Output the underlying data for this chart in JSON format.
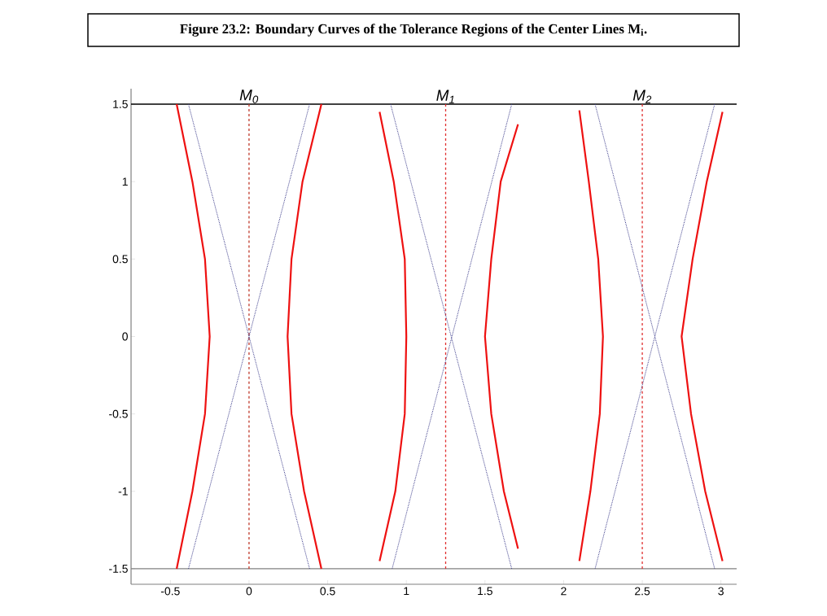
{
  "chart_data": {
    "type": "line",
    "title": "Figure 23.2: Boundary Curves of the Tolerance Regions of the Center Lines M$_{i}$.",
    "xlim": [
      -0.75,
      3.1
    ],
    "ylim": [
      -1.6,
      1.6
    ],
    "xticks": [
      -0.5,
      0,
      0.5,
      1,
      1.5,
      2,
      2.5,
      3
    ],
    "yticks": [
      -1.5,
      -1,
      -0.5,
      0,
      0.5,
      1,
      1.5
    ],
    "grid": false,
    "marker": "none",
    "series": [
      {
        "color": "#ee1111",
        "line_style": "solid",
        "x": [
          -0.46,
          -0.36,
          -0.28,
          -0.25,
          -0.28,
          -0.36,
          -0.46
        ],
        "values": [
          1.5,
          1,
          0.5,
          0,
          -0.5,
          -1,
          -1.5
        ]
      },
      {
        "color": "#ee1111",
        "line_style": "solid",
        "x": [
          0.46,
          0.34,
          0.27,
          0.245,
          0.27,
          0.35,
          0.46
        ],
        "values": [
          1.5,
          1,
          0.5,
          0,
          -0.5,
          -1,
          -1.5
        ]
      },
      {
        "color": "#ee1111",
        "line_style": "solid",
        "x": [
          0.83,
          0.92,
          0.99,
          1.0,
          0.99,
          0.93,
          0.83
        ],
        "values": [
          1.45,
          1,
          0.5,
          0,
          -0.5,
          -1,
          -1.45
        ]
      },
      {
        "color": "#ee1111",
        "line_style": "solid",
        "x": [
          1.71,
          1.6,
          1.54,
          1.5,
          1.54,
          1.62,
          1.71
        ],
        "values": [
          1.37,
          1,
          0.5,
          0,
          -0.5,
          -1,
          -1.37
        ]
      },
      {
        "color": "#ee1111",
        "line_style": "solid",
        "x": [
          2.1,
          2.16,
          2.22,
          2.25,
          2.23,
          2.17,
          2.1
        ],
        "values": [
          1.46,
          1,
          0.5,
          0,
          -0.5,
          -1,
          -1.45
        ]
      },
      {
        "color": "#ee1111",
        "line_style": "solid",
        "x": [
          3.01,
          2.91,
          2.82,
          2.75,
          2.81,
          2.9,
          3.01
        ],
        "values": [
          1.45,
          1,
          0.5,
          0,
          -0.5,
          -1,
          -1.45
        ]
      },
      {
        "color": "#3a3a8a",
        "line_style": "dotted",
        "x": [
          -0.385,
          0.385
        ],
        "values": [
          1.5,
          -1.5
        ]
      },
      {
        "color": "#3a3a8a",
        "line_style": "dotted",
        "x": [
          0.385,
          -0.385
        ],
        "values": [
          1.5,
          -1.5
        ]
      },
      {
        "color": "#3a3a8a",
        "line_style": "dotted",
        "x": [
          0.9,
          1.67
        ],
        "values": [
          1.5,
          -1.5
        ]
      },
      {
        "color": "#3a3a8a",
        "line_style": "dotted",
        "x": [
          1.67,
          0.91
        ],
        "values": [
          1.5,
          -1.5
        ]
      },
      {
        "color": "#3a3a8a",
        "line_style": "dotted",
        "x": [
          2.2,
          2.96
        ],
        "values": [
          1.5,
          -1.5
        ]
      },
      {
        "color": "#3a3a8a",
        "line_style": "dotted",
        "x": [
          2.96,
          2.2
        ],
        "values": [
          1.5,
          -1.5
        ]
      }
    ],
    "ref_lines": [
      {
        "axis": "y",
        "value": 1.5,
        "color": "#000000",
        "line_style": "solid"
      },
      {
        "axis": "y",
        "value": -1.5,
        "color": "#808080",
        "line_style": "solid"
      },
      {
        "axis": "x",
        "value": 0,
        "label": "M$_{0}$",
        "color": "#c0392b",
        "line_style": "dashed"
      },
      {
        "axis": "x",
        "value": 1.25,
        "label": "M$_{1}$",
        "color": "#e03030",
        "line_style": "dashed"
      },
      {
        "axis": "x",
        "value": 2.5,
        "label": "M$_{2}$",
        "color": "#e03030",
        "line_style": "dashed"
      }
    ]
  }
}
